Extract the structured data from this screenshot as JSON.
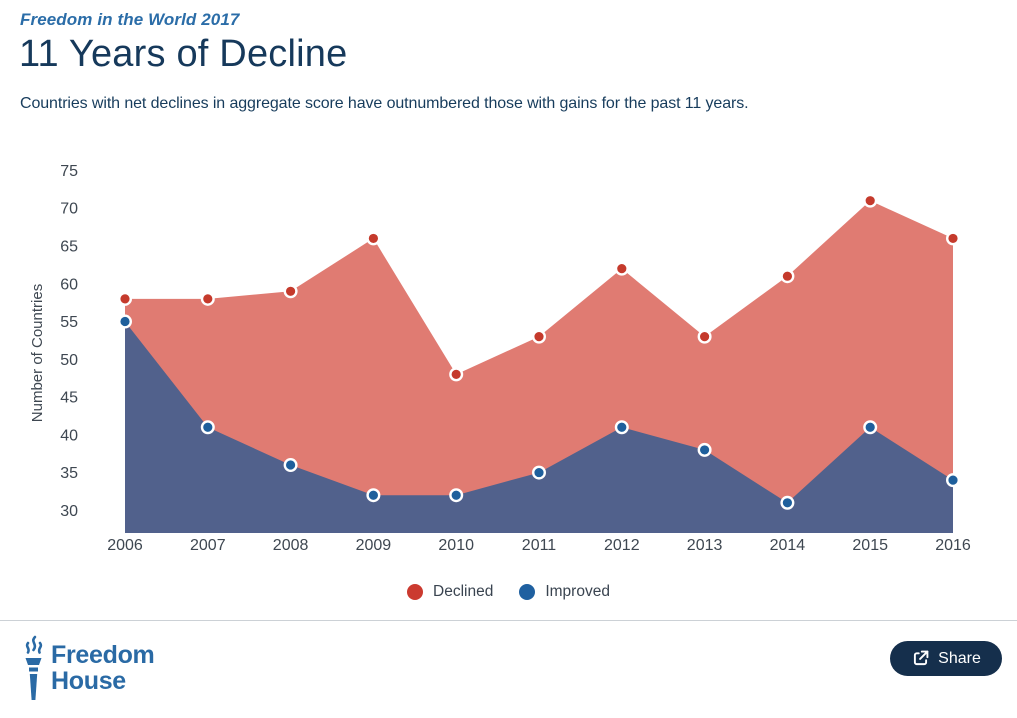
{
  "header": {
    "kicker": "Freedom in the World 2017",
    "title": "11 Years of Decline",
    "subtitle": "Countries with net declines in aggregate score have outnumbered those with gains for the past 11 years."
  },
  "chart_data": {
    "type": "area",
    "title": "11 Years of Decline",
    "x": [
      "2006",
      "2007",
      "2008",
      "2009",
      "2010",
      "2011",
      "2012",
      "2013",
      "2014",
      "2015",
      "2016"
    ],
    "series": [
      {
        "name": "Declined",
        "values": [
          58,
          58,
          59,
          66,
          48,
          53,
          62,
          53,
          61,
          71,
          66
        ],
        "fill": "#E07B72",
        "dot": "#C53A2C"
      },
      {
        "name": "Improved",
        "values": [
          55,
          41,
          36,
          32,
          32,
          35,
          41,
          38,
          31,
          41,
          34
        ],
        "fill": "#51618C",
        "dot": "#1E5F9C"
      }
    ],
    "xlabel": "",
    "ylabel": "Number of Countries",
    "yticks": [
      30,
      35,
      40,
      45,
      50,
      55,
      60,
      65,
      70,
      75
    ],
    "ylim": [
      27,
      77
    ],
    "grid": false,
    "legend_position": "bottom-center"
  },
  "legend": {
    "items": [
      {
        "label": "Declined",
        "color": "#CB3A2F"
      },
      {
        "label": "Improved",
        "color": "#1F60A0"
      }
    ]
  },
  "footer": {
    "logo_line1": "Freedom",
    "logo_line2": "House",
    "share_label": "Share"
  },
  "colors": {
    "accent_navy": "#16395B",
    "kicker_blue": "#2B6DA8",
    "logo_blue": "#2A6AA5",
    "share_button_bg": "#152F4C",
    "divider": "#CCD1D6",
    "tick_text": "#3E4751"
  }
}
